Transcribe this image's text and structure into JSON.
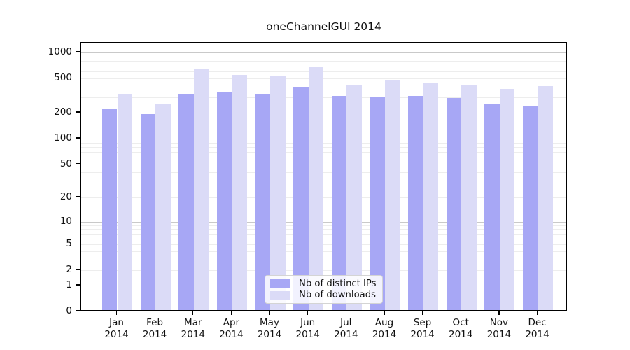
{
  "chart_data": {
    "type": "bar",
    "title": "oneChannelGUI 2014",
    "months": [
      "Jan",
      "Feb",
      "Mar",
      "Apr",
      "May",
      "Jun",
      "Jul",
      "Aug",
      "Sep",
      "Oct",
      "Nov",
      "Dec"
    ],
    "year_label": "2014",
    "categories": [
      "Jan 2014",
      "Feb 2014",
      "Mar 2014",
      "Apr 2014",
      "May 2014",
      "Jun 2014",
      "Jul 2014",
      "Aug 2014",
      "Sep 2014",
      "Oct 2014",
      "Nov 2014",
      "Dec 2014"
    ],
    "series": [
      {
        "name": "Nb of distinct IPs",
        "color": "#a7a7f5",
        "values": [
          211,
          185,
          314,
          335,
          314,
          377,
          303,
          296,
          300,
          286,
          246,
          231
        ]
      },
      {
        "name": "Nb of downloads",
        "color": "#dbdbf7",
        "values": [
          320,
          245,
          632,
          534,
          521,
          649,
          411,
          457,
          432,
          401,
          365,
          394
        ]
      }
    ],
    "yscale": "log10(x+1)",
    "yticks": [
      0,
      1,
      2,
      5,
      10,
      20,
      50,
      100,
      200,
      500,
      1000
    ],
    "ylim": [
      0,
      1300
    ],
    "grid": true,
    "gridline_major_color": "#c9c9c9",
    "gridline_minor_color": "#ededed",
    "legend_position": "bottom-center-inside",
    "xlabel": "",
    "ylabel": ""
  }
}
